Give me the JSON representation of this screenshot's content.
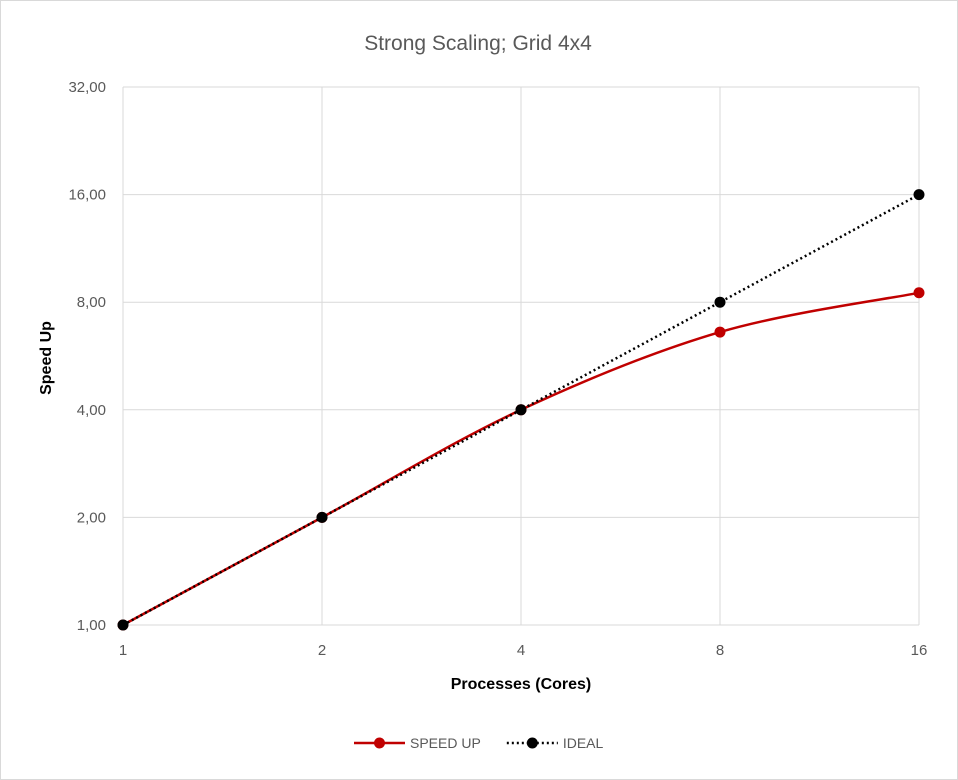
{
  "chart_data": {
    "type": "line",
    "title": "Strong Scaling; Grid 4x4",
    "xlabel": "Processes (Cores)",
    "ylabel": "Speed Up",
    "x_scale": "log2",
    "y_scale": "log2",
    "x": [
      1,
      2,
      4,
      8,
      16
    ],
    "x_tick_labels": [
      "1",
      "2",
      "4",
      "8",
      "16"
    ],
    "ylim": [
      1,
      32
    ],
    "y_ticks": [
      1,
      2,
      4,
      8,
      16,
      32
    ],
    "y_tick_labels": [
      "1,00",
      "2,00",
      "4,00",
      "8,00",
      "16,00",
      "32,00"
    ],
    "grid": true,
    "legend_position": "bottom",
    "series": [
      {
        "name": "SPEED UP",
        "values": [
          1,
          2,
          4,
          6.6,
          8.5
        ],
        "color": "#c00000",
        "line_style": "solid",
        "smooth": true
      },
      {
        "name": "IDEAL",
        "values": [
          1,
          2,
          4,
          8,
          16
        ],
        "color": "#000000",
        "line_style": "dotted",
        "smooth": false
      }
    ]
  }
}
